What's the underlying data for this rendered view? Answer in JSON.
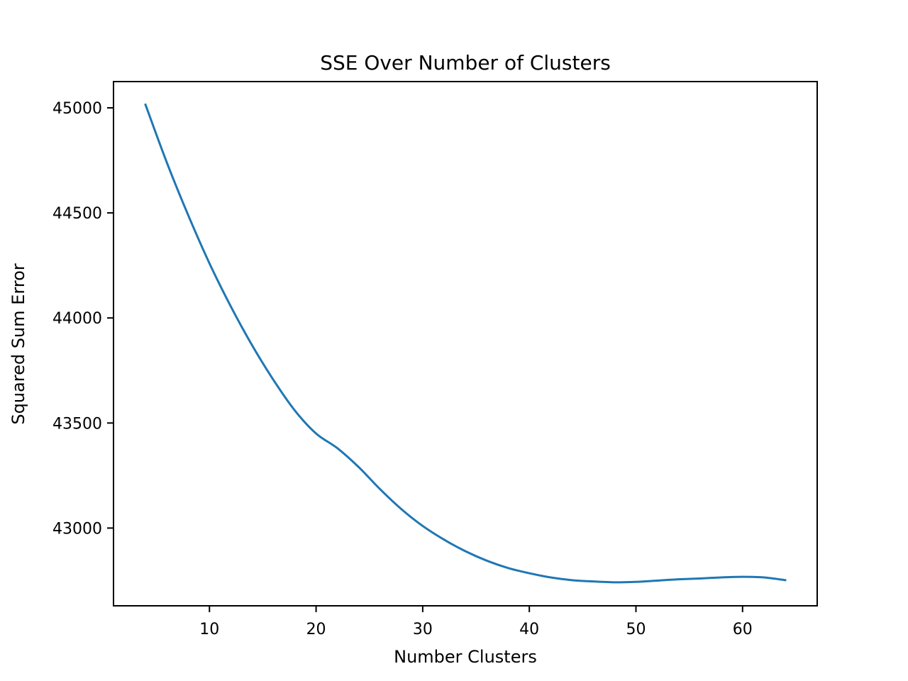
{
  "chart_data": {
    "type": "line",
    "title": "SSE Over Number of Clusters",
    "xlabel": "Number Clusters",
    "ylabel": "Squared Sum Error",
    "xlim": [
      1,
      67
    ],
    "ylim": [
      42630,
      45125
    ],
    "xticks": [
      10,
      20,
      30,
      40,
      50,
      60
    ],
    "yticks": [
      43000,
      43500,
      44000,
      44500,
      45000
    ],
    "grid": false,
    "legend": "none",
    "series": [
      {
        "color": "#1f77b4",
        "x": [
          4,
          6,
          8,
          10,
          12,
          14,
          16,
          18,
          20,
          22,
          24,
          26,
          28,
          30,
          32,
          34,
          36,
          38,
          40,
          42,
          44,
          46,
          48,
          50,
          52,
          54,
          56,
          58,
          60,
          62,
          64
        ],
        "y": [
          45015,
          44740,
          44490,
          44260,
          44055,
          43870,
          43705,
          43560,
          43450,
          43380,
          43290,
          43185,
          43090,
          43010,
          42945,
          42890,
          42845,
          42810,
          42785,
          42765,
          42752,
          42746,
          42742,
          42744,
          42750,
          42756,
          42760,
          42765,
          42768,
          42765,
          42752
        ]
      }
    ]
  }
}
